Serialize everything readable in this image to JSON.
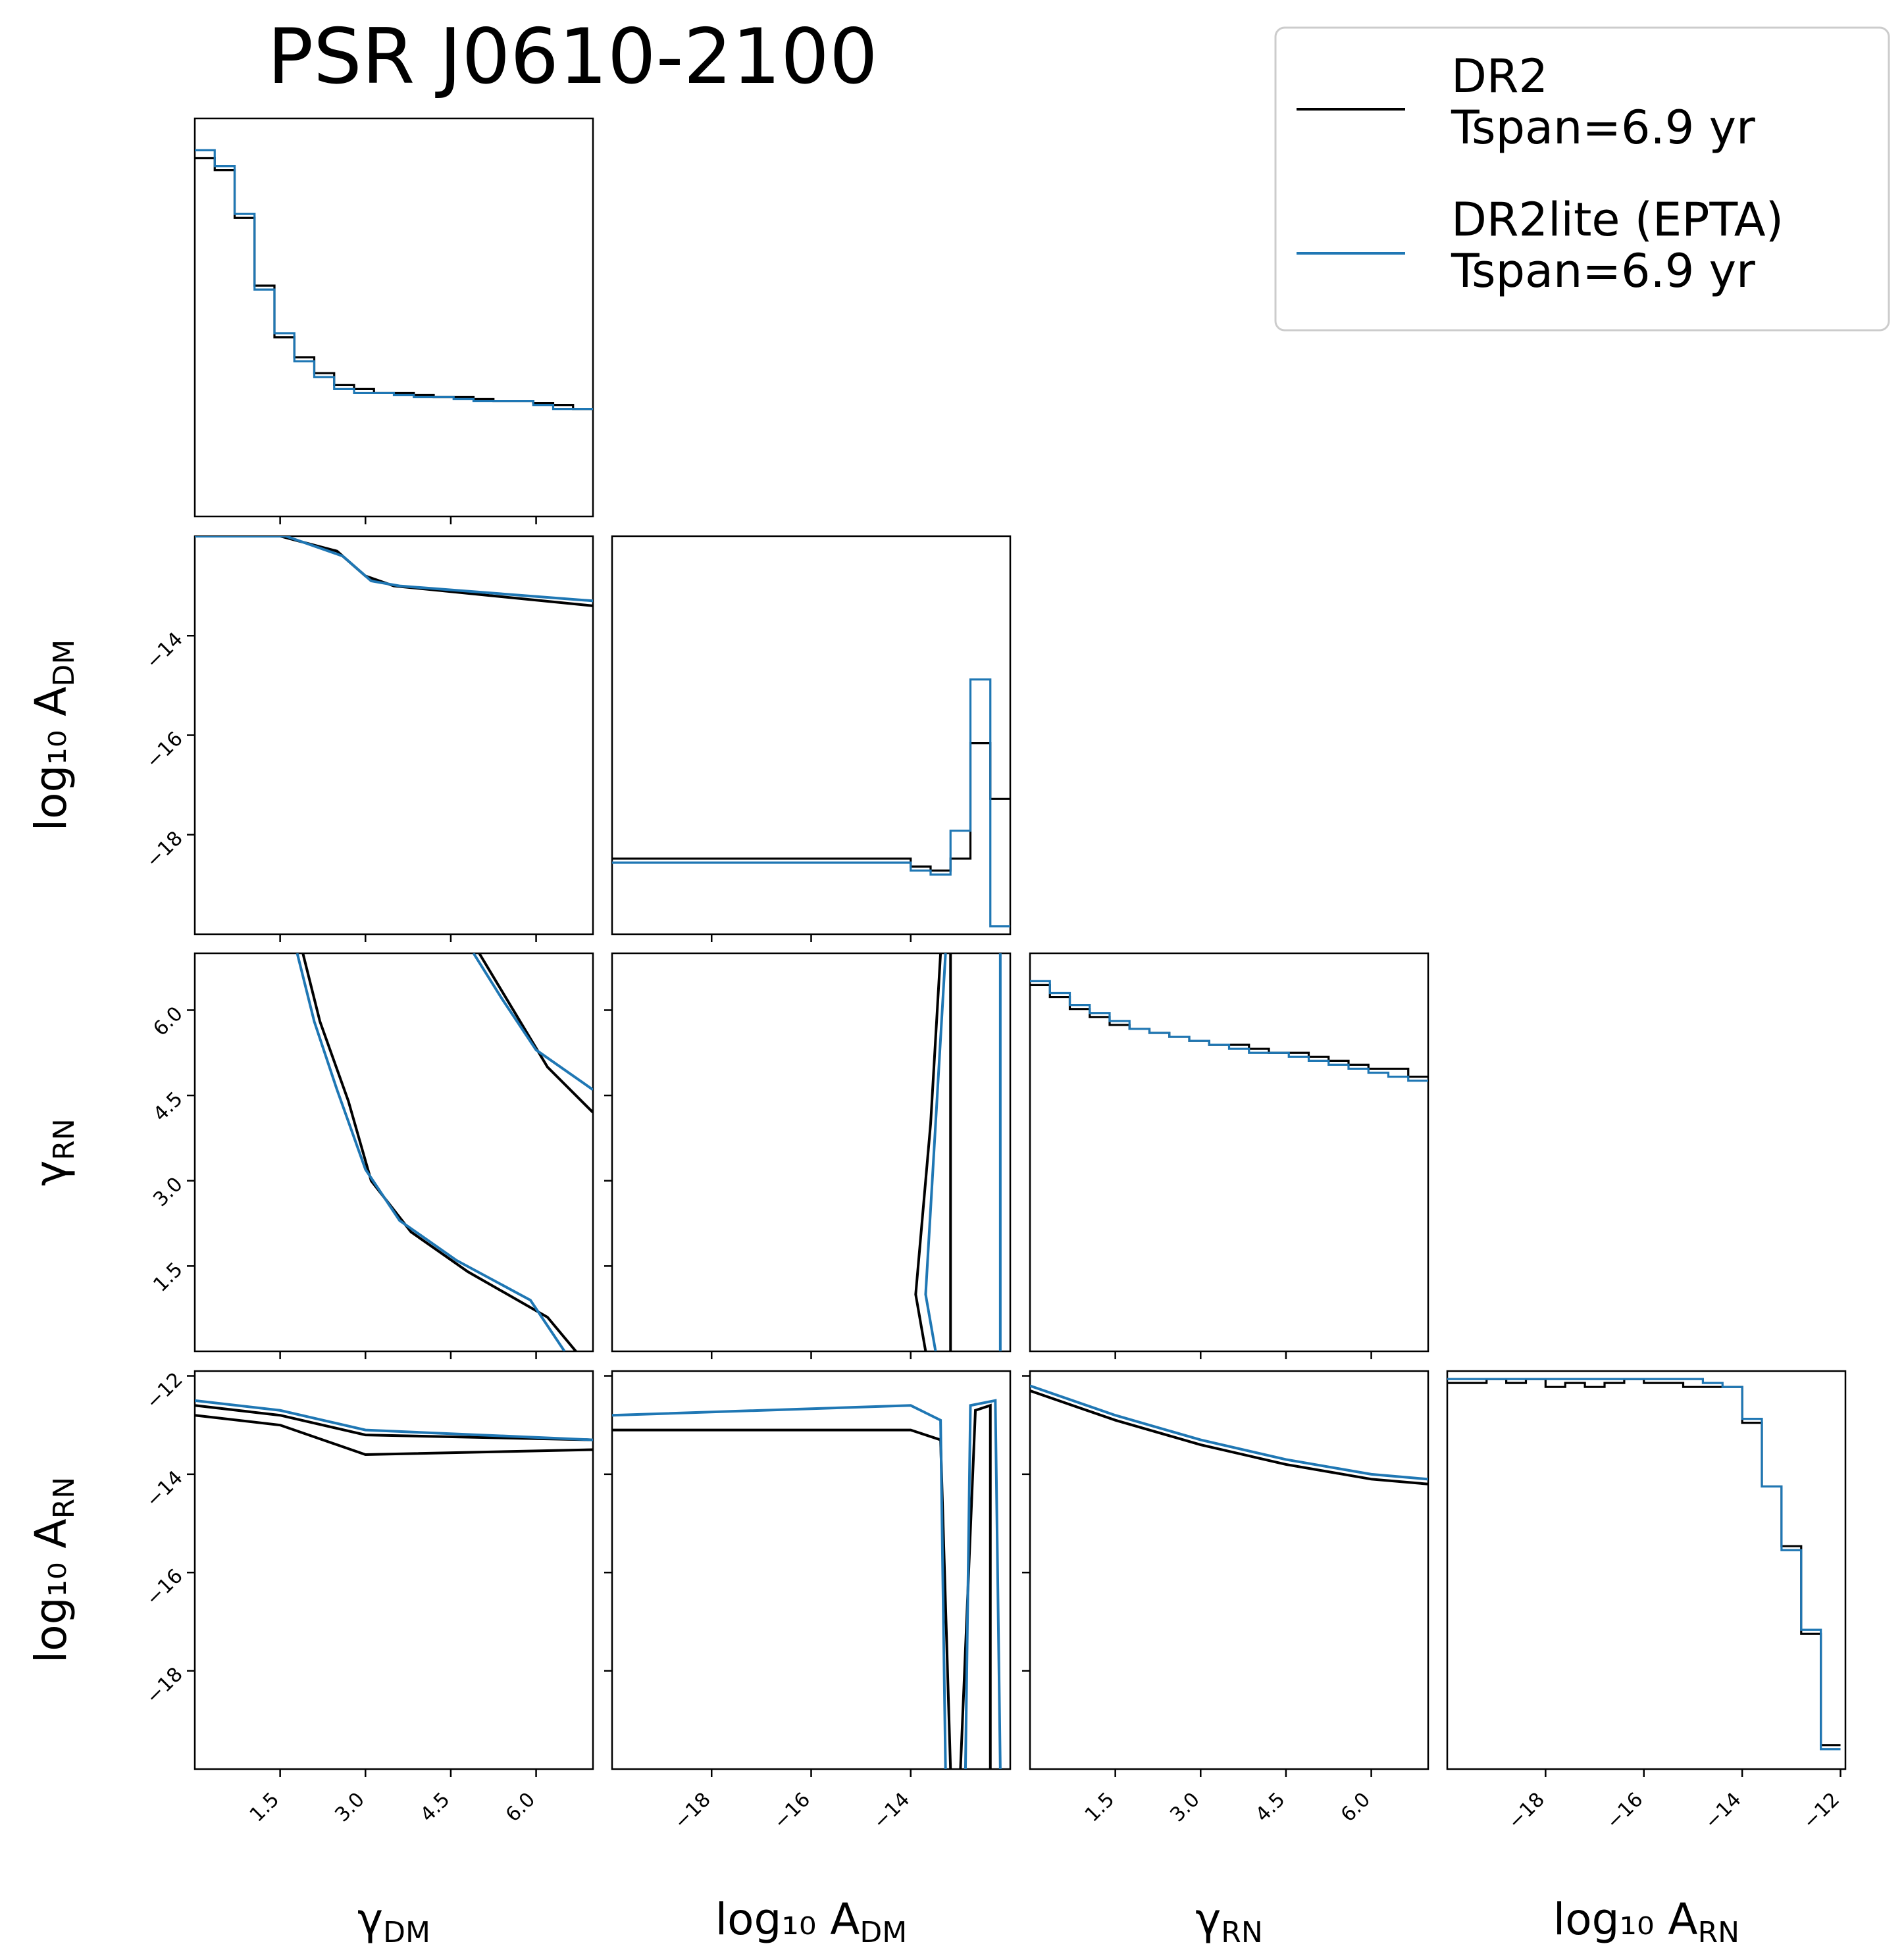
{
  "chart_data": {
    "type": "corner",
    "title": "PSR J0610-2100",
    "parameters": [
      {
        "key": "gamma_dm",
        "label_main": "γ",
        "label_sub": "DM",
        "range": [
          0.0,
          7.0
        ],
        "ticks": [
          1.5,
          3.0,
          4.5,
          6.0
        ],
        "tick_labels": [
          "1.5",
          "3.0",
          "4.5",
          "6.0"
        ]
      },
      {
        "key": "log10_A_dm",
        "label_main": "log₁₀ A",
        "label_sub": "DM",
        "range": [
          -20.0,
          -12.0
        ],
        "ticks": [
          -18,
          -16,
          -14
        ],
        "tick_labels": [
          "−18",
          "−16",
          "−14"
        ]
      },
      {
        "key": "gamma_rn",
        "label_main": "γ",
        "label_sub": "RN",
        "range": [
          0.0,
          7.0
        ],
        "ticks": [
          1.5,
          3.0,
          4.5,
          6.0
        ],
        "tick_labels": [
          "1.5",
          "3.0",
          "4.5",
          "6.0"
        ]
      },
      {
        "key": "log10_A_rn",
        "label_main": "log₁₀ A",
        "label_sub": "RN",
        "range": [
          -20.0,
          -11.9
        ],
        "ticks": [
          -18,
          -16,
          -14,
          -12
        ],
        "tick_labels": [
          "−18",
          "−16",
          "−14",
          "−12"
        ]
      }
    ],
    "series": [
      {
        "name": "DR2\nTspan=6.9 yr",
        "color": "#000000"
      },
      {
        "name": "DR2lite (EPTA)\nTspan=6.9 yr",
        "color": "#1f77b4"
      }
    ],
    "legend_position": "top-right",
    "histograms": {
      "gamma_dm": {
        "bins": [
          0.0,
          0.35,
          0.7,
          1.05,
          1.4,
          1.75,
          2.1,
          2.45,
          2.8,
          3.15,
          3.5,
          3.85,
          4.2,
          4.55,
          4.9,
          5.25,
          5.6,
          5.95,
          6.3,
          6.65,
          7.0
        ],
        "DR2": [
          0.9,
          0.87,
          0.75,
          0.58,
          0.45,
          0.4,
          0.36,
          0.33,
          0.32,
          0.31,
          0.31,
          0.305,
          0.3,
          0.3,
          0.295,
          0.29,
          0.29,
          0.285,
          0.28,
          0.27
        ],
        "DR2lite": [
          0.92,
          0.88,
          0.76,
          0.57,
          0.46,
          0.39,
          0.35,
          0.32,
          0.31,
          0.31,
          0.305,
          0.3,
          0.3,
          0.295,
          0.29,
          0.29,
          0.29,
          0.28,
          0.27,
          0.27
        ]
      },
      "log10_A_dm": {
        "bins": [
          -20.0,
          -19.6,
          -19.2,
          -18.8,
          -18.4,
          -18.0,
          -17.6,
          -17.2,
          -16.8,
          -16.4,
          -16.0,
          -15.6,
          -15.2,
          -14.8,
          -14.4,
          -14.0,
          -13.6,
          -13.2,
          -12.8,
          -12.4,
          -12.0
        ],
        "DR2": [
          0.19,
          0.19,
          0.19,
          0.19,
          0.19,
          0.19,
          0.19,
          0.19,
          0.19,
          0.19,
          0.19,
          0.19,
          0.19,
          0.19,
          0.19,
          0.17,
          0.16,
          0.19,
          0.48,
          0.34
        ],
        "DR2lite": [
          0.18,
          0.18,
          0.18,
          0.18,
          0.18,
          0.18,
          0.18,
          0.18,
          0.18,
          0.18,
          0.18,
          0.18,
          0.18,
          0.18,
          0.18,
          0.16,
          0.15,
          0.26,
          0.64,
          0.02
        ]
      },
      "gamma_rn": {
        "bins": [
          0.0,
          0.35,
          0.7,
          1.05,
          1.4,
          1.75,
          2.1,
          2.45,
          2.8,
          3.15,
          3.5,
          3.85,
          4.2,
          4.55,
          4.9,
          5.25,
          5.6,
          5.95,
          6.3,
          6.65,
          7.0
        ],
        "DR2": [
          0.92,
          0.89,
          0.86,
          0.84,
          0.82,
          0.81,
          0.8,
          0.79,
          0.78,
          0.77,
          0.77,
          0.76,
          0.75,
          0.75,
          0.74,
          0.73,
          0.72,
          0.71,
          0.71,
          0.69
        ],
        "DR2lite": [
          0.93,
          0.9,
          0.87,
          0.85,
          0.83,
          0.81,
          0.8,
          0.79,
          0.78,
          0.77,
          0.76,
          0.75,
          0.75,
          0.74,
          0.73,
          0.72,
          0.71,
          0.7,
          0.69,
          0.68
        ]
      },
      "log10_A_rn": {
        "bins": [
          -20.0,
          -19.6,
          -19.2,
          -18.8,
          -18.4,
          -18.0,
          -17.6,
          -17.2,
          -16.8,
          -16.4,
          -16.0,
          -15.6,
          -15.2,
          -14.8,
          -14.4,
          -14.0,
          -13.6,
          -13.2,
          -12.8,
          -12.4,
          -12.0
        ],
        "DR2": [
          0.97,
          0.97,
          0.98,
          0.97,
          0.98,
          0.96,
          0.97,
          0.96,
          0.97,
          0.98,
          0.97,
          0.97,
          0.96,
          0.96,
          0.96,
          0.87,
          0.71,
          0.56,
          0.34,
          0.06
        ],
        "DR2lite": [
          0.98,
          0.98,
          0.98,
          0.98,
          0.98,
          0.98,
          0.98,
          0.98,
          0.98,
          0.98,
          0.98,
          0.98,
          0.98,
          0.97,
          0.96,
          0.88,
          0.71,
          0.55,
          0.35,
          0.05
        ]
      }
    },
    "credible_contours": {
      "log10_A_dm|gamma_dm": {
        "DR2": [
          [
            [
              0.0,
              -12.0
            ],
            [
              1.5,
              -12.0
            ],
            [
              2.5,
              -12.3
            ],
            [
              3.0,
              -12.8
            ],
            [
              3.5,
              -13.0
            ],
            [
              7.0,
              -13.4
            ]
          ]
        ],
        "DR2lite": [
          [
            [
              0.0,
              -12.0
            ],
            [
              1.6,
              -12.0
            ],
            [
              2.6,
              -12.4
            ],
            [
              3.1,
              -12.9
            ],
            [
              3.6,
              -13.0
            ],
            [
              7.0,
              -13.3
            ]
          ]
        ]
      },
      "gamma_rn|gamma_dm": {
        "DR2": [
          [
            [
              1.9,
              7.0
            ],
            [
              2.2,
              5.8
            ],
            [
              2.7,
              4.4
            ],
            [
              3.1,
              3.0
            ],
            [
              3.8,
              2.1
            ],
            [
              4.8,
              1.4
            ],
            [
              6.2,
              0.6
            ],
            [
              6.7,
              0.0
            ]
          ],
          [
            [
              5.0,
              7.0
            ],
            [
              5.6,
              6.0
            ],
            [
              6.2,
              5.0
            ],
            [
              7.0,
              4.2
            ]
          ]
        ],
        "DR2lite": [
          [
            [
              1.8,
              7.0
            ],
            [
              2.1,
              5.8
            ],
            [
              2.5,
              4.6
            ],
            [
              3.0,
              3.2
            ],
            [
              3.6,
              2.3
            ],
            [
              4.6,
              1.6
            ],
            [
              5.9,
              0.9
            ],
            [
              6.5,
              0.0
            ]
          ],
          [
            [
              4.9,
              7.0
            ],
            [
              5.4,
              6.2
            ],
            [
              6.0,
              5.3
            ],
            [
              7.0,
              4.6
            ]
          ]
        ]
      },
      "log10_A_rn|gamma_dm": {
        "DR2": [
          [
            [
              0.0,
              -12.6
            ],
            [
              1.5,
              -12.8
            ],
            [
              3.0,
              -13.2
            ],
            [
              7.0,
              -13.3
            ]
          ],
          [
            [
              0.0,
              -12.8
            ],
            [
              1.5,
              -13.0
            ],
            [
              3.0,
              -13.6
            ],
            [
              7.0,
              -13.5
            ]
          ]
        ],
        "DR2lite": [
          [
            [
              0.0,
              -12.5
            ],
            [
              1.5,
              -12.7
            ],
            [
              3.0,
              -13.1
            ],
            [
              7.0,
              -13.3
            ]
          ]
        ]
      },
      "gamma_rn|log10_A_dm": {
        "DR2": [
          [
            [
              -13.4,
              7.0
            ],
            [
              -13.6,
              4.0
            ],
            [
              -13.9,
              1.0
            ],
            [
              -13.7,
              0.0
            ]
          ],
          [
            [
              -13.2,
              0.0
            ],
            [
              -13.2,
              7.0
            ]
          ]
        ],
        "DR2lite": [
          [
            [
              -13.3,
              7.0
            ],
            [
              -13.5,
              4.0
            ],
            [
              -13.7,
              1.0
            ],
            [
              -13.5,
              0.0
            ]
          ],
          [
            [
              -12.2,
              0.0
            ],
            [
              -12.2,
              7.0
            ]
          ]
        ]
      },
      "log10_A_rn|log10_A_dm": {
        "DR2": [
          [
            [
              -20.0,
              -13.1
            ],
            [
              -14.0,
              -13.1
            ],
            [
              -13.4,
              -13.3
            ],
            [
              -13.2,
              -20.0
            ]
          ],
          [
            [
              -12.4,
              -20.0
            ],
            [
              -12.4,
              -12.6
            ],
            [
              -12.7,
              -12.7
            ],
            [
              -13.0,
              -20.0
            ]
          ]
        ],
        "DR2lite": [
          [
            [
              -20.0,
              -12.8
            ],
            [
              -14.0,
              -12.6
            ],
            [
              -13.4,
              -12.9
            ],
            [
              -13.3,
              -20.0
            ]
          ],
          [
            [
              -12.2,
              -20.0
            ],
            [
              -12.3,
              -12.5
            ],
            [
              -12.8,
              -12.6
            ],
            [
              -12.9,
              -20.0
            ]
          ]
        ]
      },
      "log10_A_rn|gamma_rn": {
        "DR2": [
          [
            [
              0.0,
              -12.3
            ],
            [
              1.5,
              -12.9
            ],
            [
              3.0,
              -13.4
            ],
            [
              4.5,
              -13.8
            ],
            [
              6.0,
              -14.1
            ],
            [
              7.0,
              -14.2
            ]
          ]
        ],
        "DR2lite": [
          [
            [
              0.0,
              -12.2
            ],
            [
              1.5,
              -12.8
            ],
            [
              3.0,
              -13.3
            ],
            [
              4.5,
              -13.7
            ],
            [
              6.0,
              -14.0
            ],
            [
              7.0,
              -14.1
            ]
          ]
        ]
      }
    }
  }
}
